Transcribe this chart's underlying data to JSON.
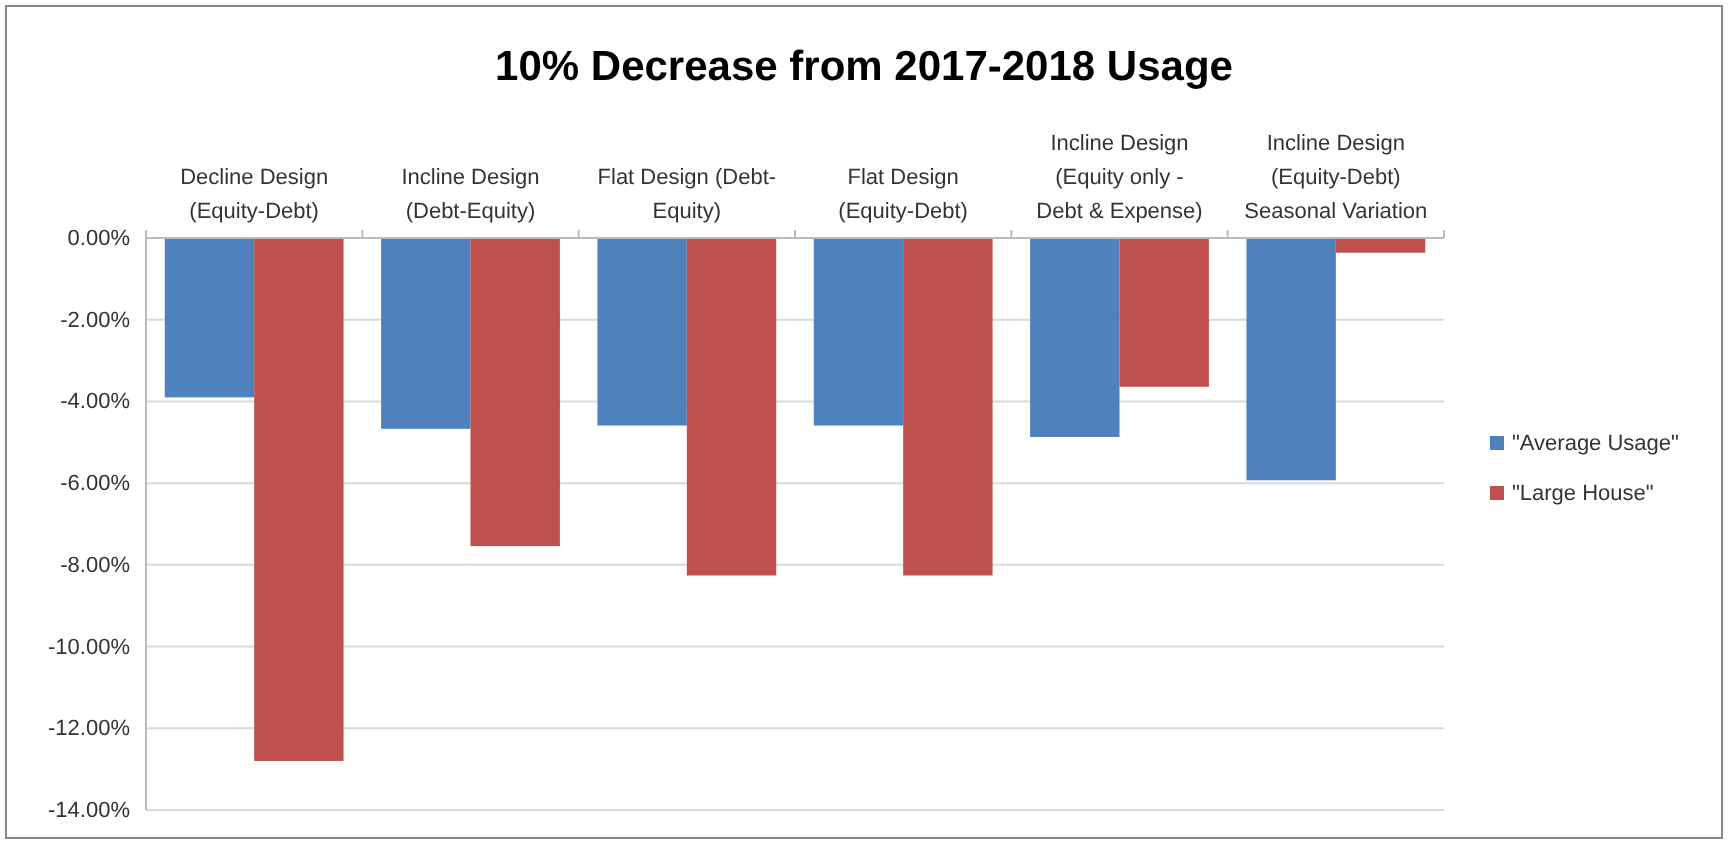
{
  "chart_data": {
    "type": "bar",
    "title": "10% Decrease from 2017-2018 Usage",
    "categories": [
      "Decline Design (Equity-Debt)",
      "Incline Design (Debt-Equity)",
      "Flat Design (Debt-Equity)",
      "Flat Design (Equity-Debt)",
      "Incline Design (Equity only - Debt & Expense)",
      "Incline Design (Equity-Debt) Seasonal Variation"
    ],
    "series": [
      {
        "name": "\"Average Usage\"",
        "color": "#4f81bd",
        "values": [
          -3.9,
          -4.67,
          -4.59,
          -4.59,
          -4.87,
          -5.93
        ]
      },
      {
        "name": "\"Large House\"",
        "color": "#c0504d",
        "values": [
          -12.8,
          -7.54,
          -8.26,
          -8.26,
          -3.64,
          -0.36
        ]
      }
    ],
    "ylim": [
      -14,
      0
    ],
    "yticks": [
      {
        "value": 0,
        "label": "0.00%"
      },
      {
        "value": -2,
        "label": "-2.00%"
      },
      {
        "value": -4,
        "label": "-4.00%"
      },
      {
        "value": -6,
        "label": "-6.00%"
      },
      {
        "value": -8,
        "label": "-8.00%"
      },
      {
        "value": -10,
        "label": "-10.00%"
      },
      {
        "value": -12,
        "label": "-12.00%"
      },
      {
        "value": -14,
        "label": "-14.00%"
      }
    ],
    "grid": "y",
    "legend": "right"
  }
}
